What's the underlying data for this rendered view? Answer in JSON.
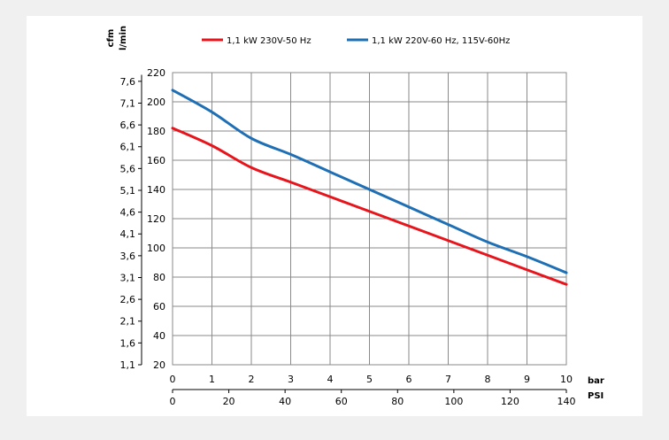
{
  "chart_data": {
    "type": "line",
    "title": "",
    "units": {
      "cfm": "cfm",
      "lmin": "l/min",
      "bar": "bar",
      "psi": "PSI"
    },
    "x_bar_ticks": [
      "0",
      "1",
      "2",
      "3",
      "4",
      "5",
      "6",
      "7",
      "8",
      "9",
      "10"
    ],
    "x_psi_ticks": [
      "0",
      "20",
      "40",
      "60",
      "80",
      "100",
      "120",
      "140"
    ],
    "x_psi_values": [
      0,
      20,
      40,
      60,
      80,
      100,
      120,
      140
    ],
    "y_lmin_ticks": [
      "20",
      "40",
      "60",
      "80",
      "100",
      "120",
      "140",
      "160",
      "180",
      "200",
      "220"
    ],
    "y_cfm_ticks": [
      "1,1",
      "1,6",
      "2,1",
      "2,6",
      "3,1",
      "3,6",
      "4,1",
      "4,6",
      "5,1",
      "5,6",
      "6,1",
      "6,6",
      "7,1",
      "7,6"
    ],
    "y_cfm_values": [
      1.1,
      1.6,
      2.1,
      2.6,
      3.1,
      3.6,
      4.1,
      4.6,
      5.1,
      5.6,
      6.1,
      6.6,
      7.1,
      7.6
    ],
    "xlim_bar": [
      0,
      10
    ],
    "xlim_psi": [
      0,
      140
    ],
    "ylim_lmin": [
      20,
      220
    ],
    "ylim_cfm": [
      1.1,
      7.8
    ],
    "grid": true,
    "legend_position": "top",
    "series": [
      {
        "name": "1,1 kW 230V-50 Hz",
        "color": "#e8141c",
        "x": [
          0,
          1,
          2,
          3,
          4,
          5,
          6,
          7,
          8,
          9,
          10
        ],
        "y": [
          182,
          170,
          155,
          145,
          135,
          125,
          115,
          105,
          95,
          85,
          75
        ]
      },
      {
        "name": "1,1 kW 220V-60 Hz, 115V-60Hz",
        "color": "#1f6fb5",
        "x": [
          0,
          1,
          2,
          3,
          4,
          5,
          6,
          7,
          8,
          9,
          10
        ],
        "y": [
          208,
          193,
          175,
          164,
          152,
          140,
          128,
          116,
          104,
          94,
          83
        ]
      }
    ]
  }
}
